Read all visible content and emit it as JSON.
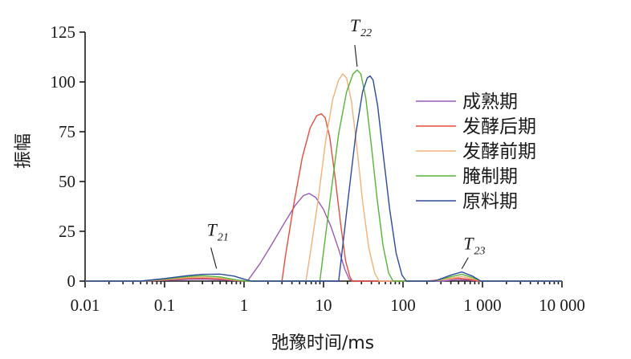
{
  "chart_data": {
    "type": "line",
    "xscale": "log",
    "xlabel": "弛豫时间/ms",
    "ylabel": "振幅",
    "xlim": [
      0.01,
      10000
    ],
    "ylim": [
      0,
      125
    ],
    "xticks": [
      {
        "value": 0.01,
        "label": "0.01"
      },
      {
        "value": 0.1,
        "label": "0.1"
      },
      {
        "value": 1,
        "label": "1"
      },
      {
        "value": 10,
        "label": "10"
      },
      {
        "value": 100,
        "label": "100"
      },
      {
        "value": 1000,
        "label": "1 000"
      },
      {
        "value": 10000,
        "label": "10 000"
      }
    ],
    "yticks": [
      {
        "value": 0,
        "label": "0"
      },
      {
        "value": 25,
        "label": "25"
      },
      {
        "value": 50,
        "label": "50"
      },
      {
        "value": 75,
        "label": "75"
      },
      {
        "value": 100,
        "label": "100"
      },
      {
        "value": 125,
        "label": "125"
      }
    ],
    "legend_position": "right",
    "grid": false,
    "series": [
      {
        "name": "成熟期",
        "color": "#9b59b6",
        "points": [
          [
            0.01,
            0
          ],
          [
            0.05,
            0
          ],
          [
            0.1,
            0.4
          ],
          [
            0.2,
            0.9
          ],
          [
            0.3,
            1.0
          ],
          [
            0.5,
            0.7
          ],
          [
            0.8,
            0.2
          ],
          [
            1.1,
            0
          ],
          [
            1.25,
            3
          ],
          [
            1.6,
            9
          ],
          [
            2.2,
            18
          ],
          [
            3.2,
            29
          ],
          [
            4.4,
            38
          ],
          [
            5.6,
            43
          ],
          [
            6.6,
            44
          ],
          [
            8,
            42
          ],
          [
            10,
            36
          ],
          [
            12.5,
            27
          ],
          [
            15.5,
            16
          ],
          [
            18.5,
            6
          ],
          [
            21,
            1
          ],
          [
            23,
            0
          ],
          [
            300,
            0
          ],
          [
            500,
            0.8
          ],
          [
            700,
            0.4
          ],
          [
            900,
            0
          ],
          [
            10000,
            0
          ]
        ]
      },
      {
        "name": "发酵后期",
        "color": "#e74c3c",
        "points": [
          [
            0.01,
            0
          ],
          [
            0.05,
            0
          ],
          [
            0.1,
            0.6
          ],
          [
            0.2,
            1.4
          ],
          [
            0.3,
            1.5
          ],
          [
            0.5,
            1.1
          ],
          [
            0.8,
            0.3
          ],
          [
            1.1,
            0
          ],
          [
            3,
            0
          ],
          [
            3.3,
            12
          ],
          [
            4.2,
            38
          ],
          [
            5.4,
            62
          ],
          [
            6.8,
            77
          ],
          [
            8.2,
            83
          ],
          [
            9.4,
            84
          ],
          [
            10.5,
            82
          ],
          [
            12,
            72
          ],
          [
            14,
            52
          ],
          [
            16.5,
            28
          ],
          [
            19,
            10
          ],
          [
            21.5,
            2
          ],
          [
            23,
            0
          ],
          [
            200,
            0
          ],
          [
            350,
            1
          ],
          [
            500,
            1.5
          ],
          [
            700,
            0.8
          ],
          [
            900,
            0
          ],
          [
            10000,
            0
          ]
        ]
      },
      {
        "name": "发酵前期",
        "color": "#f0b27a",
        "points": [
          [
            0.01,
            0
          ],
          [
            0.05,
            0
          ],
          [
            0.1,
            0.8
          ],
          [
            0.2,
            1.8
          ],
          [
            0.3,
            2.0
          ],
          [
            0.5,
            1.5
          ],
          [
            0.8,
            0.4
          ],
          [
            1.1,
            0
          ],
          [
            6,
            0
          ],
          [
            6.7,
            12
          ],
          [
            8.5,
            40
          ],
          [
            10.6,
            70
          ],
          [
            13,
            91
          ],
          [
            15.5,
            101
          ],
          [
            17.5,
            104
          ],
          [
            19.5,
            102
          ],
          [
            22.5,
            90
          ],
          [
            26.5,
            66
          ],
          [
            31,
            40
          ],
          [
            37,
            17
          ],
          [
            44,
            4
          ],
          [
            50,
            0
          ],
          [
            250,
            0
          ],
          [
            400,
            1.5
          ],
          [
            550,
            2.3
          ],
          [
            750,
            1.2
          ],
          [
            950,
            0
          ],
          [
            10000,
            0
          ]
        ]
      },
      {
        "name": "腌制期",
        "color": "#58b33a",
        "points": [
          [
            0.01,
            0
          ],
          [
            0.05,
            0
          ],
          [
            0.1,
            1.0
          ],
          [
            0.2,
            2.3
          ],
          [
            0.3,
            2.7
          ],
          [
            0.5,
            2.1
          ],
          [
            0.8,
            0.6
          ],
          [
            1.1,
            0
          ],
          [
            9,
            0
          ],
          [
            9.8,
            12
          ],
          [
            12.2,
            42
          ],
          [
            15.5,
            74
          ],
          [
            19.5,
            95
          ],
          [
            23.5,
            104
          ],
          [
            26.5,
            106
          ],
          [
            29.5,
            104
          ],
          [
            34,
            92
          ],
          [
            40,
            68
          ],
          [
            47,
            42
          ],
          [
            56,
            18
          ],
          [
            66,
            4
          ],
          [
            75,
            0
          ],
          [
            250,
            0
          ],
          [
            400,
            2.2
          ],
          [
            550,
            3.4
          ],
          [
            750,
            1.8
          ],
          [
            950,
            0
          ],
          [
            10000,
            0
          ]
        ]
      },
      {
        "name": "原料期",
        "color": "#2e4a9e",
        "points": [
          [
            0.01,
            0
          ],
          [
            0.05,
            0
          ],
          [
            0.1,
            1.3
          ],
          [
            0.2,
            2.8
          ],
          [
            0.3,
            3.4
          ],
          [
            0.5,
            3.5
          ],
          [
            0.75,
            2.5
          ],
          [
            1,
            1
          ],
          [
            1.25,
            0
          ],
          [
            15.5,
            0
          ],
          [
            16.8,
            12
          ],
          [
            20.5,
            42
          ],
          [
            25.5,
            74
          ],
          [
            31,
            95
          ],
          [
            35.5,
            102
          ],
          [
            38.5,
            103
          ],
          [
            42,
            101
          ],
          [
            48,
            88
          ],
          [
            57,
            62
          ],
          [
            68,
            36
          ],
          [
            82,
            14
          ],
          [
            97,
            3
          ],
          [
            110,
            0
          ],
          [
            250,
            0
          ],
          [
            400,
            3
          ],
          [
            550,
            4.6
          ],
          [
            750,
            2.5
          ],
          [
            950,
            0
          ],
          [
            10000,
            0
          ]
        ]
      }
    ],
    "annotations": [
      {
        "main": "T",
        "sub": "21",
        "x": 0.45,
        "y": 3.5
      },
      {
        "main": "T",
        "sub": "22",
        "x": 26.5,
        "y": 106
      },
      {
        "main": "T",
        "sub": "23",
        "x": 550,
        "y": 4.6
      }
    ]
  }
}
